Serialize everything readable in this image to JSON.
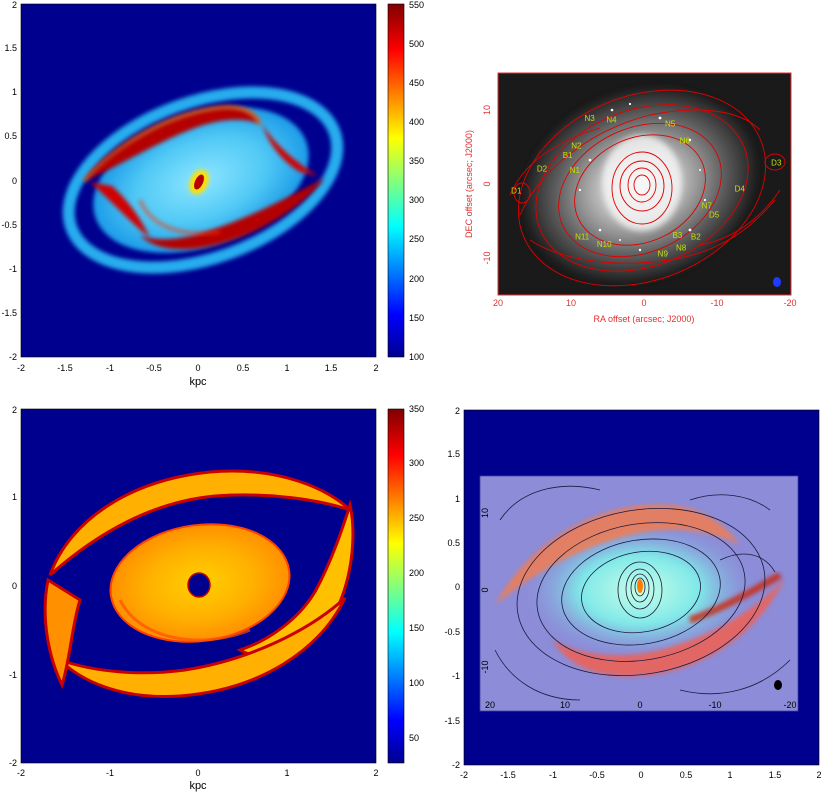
{
  "chart_data": [
    {
      "panel": "top-left",
      "type": "heatmap",
      "xlabel": "kpc",
      "ylabel": "",
      "xlim": [
        -2,
        2
      ],
      "ylim": [
        -2,
        2
      ],
      "xticks": [
        "-2",
        "-1.5",
        "-1",
        "-0.5",
        "0",
        "0.5",
        "1",
        "1.5",
        "2"
      ],
      "yticks": [
        "-2",
        "-1.5",
        "-1",
        "-0.5",
        "0",
        "0.5",
        "1",
        "1.5",
        "2"
      ],
      "colorbar": {
        "range": [
          100,
          550
        ],
        "ticks": [
          "100",
          "150",
          "200",
          "250",
          "300",
          "350",
          "400",
          "450",
          "500",
          "550"
        ]
      },
      "colors": {
        "background": "#00008f",
        "disk": "#29b6f6",
        "arm": "#b40000",
        "rim": "#2ecbff"
      }
    },
    {
      "panel": "top-right",
      "type": "scatter",
      "xlabel": "RA offset (arcsec; J2000)",
      "ylabel": "DEC offset (arcsec; J2000)",
      "xlim": [
        20,
        -20
      ],
      "ylim": [
        -15,
        15
      ],
      "xticks": [
        "20",
        "10",
        "0",
        "-10",
        "-20"
      ],
      "yticks": [
        "-10",
        "0",
        "10"
      ],
      "colors": {
        "contour": "#e00000",
        "label": "#c8e000",
        "axis": "#e03030",
        "beam": "#1e3cff"
      },
      "points": [
        {
          "label": "N3",
          "x": 7.5,
          "y": 8.5
        },
        {
          "label": "N4",
          "x": 4.5,
          "y": 8.3
        },
        {
          "label": "N5",
          "x": -3.5,
          "y": 7.8
        },
        {
          "label": "N6",
          "x": -5.5,
          "y": 5.5
        },
        {
          "label": "N2",
          "x": 9.3,
          "y": 4.8
        },
        {
          "label": "B1",
          "x": 10.5,
          "y": 3.5
        },
        {
          "label": "N1",
          "x": 9.5,
          "y": 1.5
        },
        {
          "label": "D2",
          "x": 14,
          "y": 1.7
        },
        {
          "label": "D1",
          "x": 17.5,
          "y": -1.3
        },
        {
          "label": "D3",
          "x": -18,
          "y": 2.5
        },
        {
          "label": "D4",
          "x": -13,
          "y": -1
        },
        {
          "label": "N7",
          "x": -8.5,
          "y": -3.3
        },
        {
          "label": "D5",
          "x": -9.5,
          "y": -4.5
        },
        {
          "label": "N11",
          "x": 8.5,
          "y": -7.5
        },
        {
          "label": "N10",
          "x": 5.5,
          "y": -8.5
        },
        {
          "label": "B3",
          "x": -4.5,
          "y": -7.3
        },
        {
          "label": "B2",
          "x": -7,
          "y": -7.5
        },
        {
          "label": "N8",
          "x": -5,
          "y": -9
        },
        {
          "label": "N9",
          "x": -2.5,
          "y": -9.8
        }
      ]
    },
    {
      "panel": "bottom-left",
      "type": "heatmap",
      "xlabel": "kpc",
      "ylabel": "",
      "xlim": [
        -2,
        2
      ],
      "ylim": [
        -2,
        2
      ],
      "xticks": [
        "-2",
        "-1",
        "0",
        "1",
        "2"
      ],
      "yticks": [
        "-2",
        "-1",
        "0",
        "1",
        "2"
      ],
      "colorbar": {
        "range": [
          30,
          350
        ],
        "ticks": [
          "50",
          "100",
          "150",
          "200",
          "250",
          "300",
          "350"
        ]
      },
      "colors": {
        "background": "#00008f",
        "disk": "#ffa000",
        "arm": "#ffd000",
        "edge": "#c80000",
        "hole": "#00008f"
      }
    },
    {
      "panel": "bottom-right",
      "type": "heatmap",
      "xlabel": "",
      "ylabel": "",
      "xlim": [
        -2,
        2
      ],
      "ylim": [
        -2,
        2
      ],
      "xticks": [
        "-2",
        "-1.5",
        "-1",
        "-0.5",
        "0",
        "0.5",
        "1",
        "1.5",
        "2"
      ],
      "yticks": [
        "-2",
        "-1.5",
        "-1",
        "-0.5",
        "0",
        "0.5",
        "1",
        "1.5",
        "2"
      ],
      "inset_xticks": [
        "20",
        "10",
        "0",
        "-10",
        "-20"
      ],
      "inset_yticks": [
        "10",
        "0",
        "-10"
      ],
      "colors": {
        "background": "#00008f",
        "inset": "#8c8cd8",
        "contour": "#1a1a40",
        "arm": "#ff5a3c",
        "glow": "#5fe0e0"
      }
    }
  ]
}
